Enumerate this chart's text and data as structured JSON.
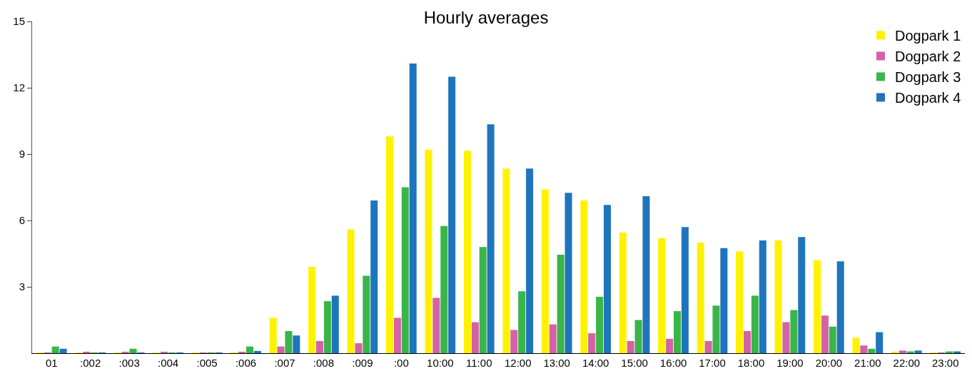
{
  "chart_data": {
    "type": "bar",
    "title": "Hourly averages",
    "categories": [
      "01",
      ":002",
      ":003",
      ":004",
      ":005",
      ":006",
      ":007",
      ":008",
      ":009",
      ":00",
      "10:00",
      "11:00",
      "12:00",
      "13:00",
      "14:00",
      "15:00",
      "16:00",
      "17:00",
      "18:00",
      "19:00",
      "20:00",
      "21:00",
      "22:00",
      "23:00"
    ],
    "series": [
      {
        "name": "Dogpark 1",
        "color": "#fff200",
        "values": [
          0.02,
          0.02,
          0.02,
          0.02,
          0.02,
          0.02,
          1.6,
          3.9,
          5.6,
          9.8,
          9.2,
          9.15,
          8.35,
          7.4,
          6.9,
          5.45,
          5.2,
          5.0,
          4.6,
          5.1,
          4.2,
          0.7,
          0.07,
          0.02
        ]
      },
      {
        "name": "Dogpark 2",
        "color": "#d462a6",
        "values": [
          0.02,
          0.05,
          0.05,
          0.05,
          0.02,
          0.05,
          0.3,
          0.55,
          0.45,
          1.6,
          2.5,
          1.4,
          1.05,
          1.3,
          0.9,
          0.55,
          0.65,
          0.55,
          1.0,
          1.4,
          1.7,
          0.35,
          0.12,
          0.02
        ]
      },
      {
        "name": "Dogpark 3",
        "color": "#3ab54a",
        "values": [
          0.3,
          0.02,
          0.2,
          0.02,
          0.02,
          0.3,
          1.0,
          2.35,
          3.5,
          7.5,
          5.75,
          4.8,
          2.8,
          4.45,
          2.55,
          1.5,
          1.9,
          2.15,
          2.6,
          1.95,
          1.2,
          0.2,
          0.08,
          0.08
        ]
      },
      {
        "name": "Dogpark 4",
        "color": "#1f75bd",
        "values": [
          0.2,
          0.02,
          0.02,
          0.02,
          0.02,
          0.1,
          0.8,
          2.6,
          6.9,
          13.1,
          12.5,
          10.35,
          8.35,
          7.25,
          6.7,
          7.1,
          5.7,
          4.75,
          5.1,
          5.25,
          4.15,
          0.95,
          0.12,
          0.08
        ]
      }
    ],
    "ylim": [
      0,
      15
    ],
    "yticks": [
      3,
      6,
      9,
      12,
      15
    ],
    "legend": "top right"
  }
}
